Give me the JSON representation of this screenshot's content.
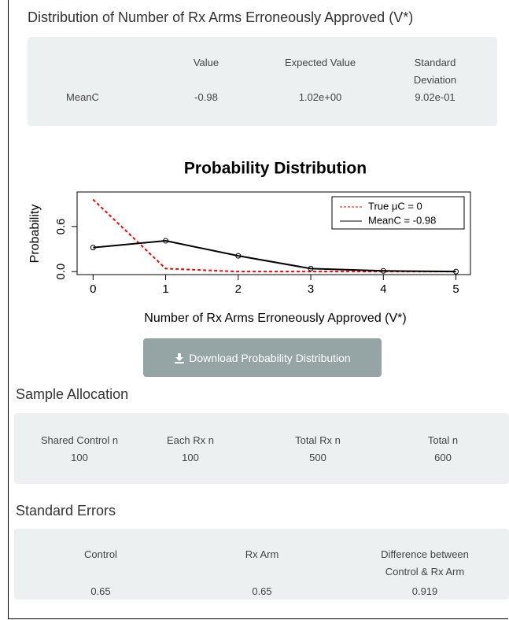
{
  "header": {
    "title": "Distribution of Number of Rx Arms Erroneously Approved (V*)"
  },
  "stats_table": {
    "columns": [
      "Value",
      "Expected Value",
      "Standard Deviation"
    ],
    "rows": [
      [
        "MeanC",
        "-0.98",
        "1.02e+00",
        "9.02e-01"
      ]
    ]
  },
  "chart_data": {
    "type": "line",
    "title": "Probability Distribution",
    "x_label": "Number of Rx Arms Erroneously Approved (V*)",
    "y_label": "Probability",
    "x": [
      0,
      1,
      2,
      3,
      4,
      5
    ],
    "series": [
      {
        "name": "True μC = 0",
        "color": "#ff0000",
        "style": "dashed",
        "markers": false,
        "values": [
          0.96,
          0.04,
          0.0,
          0.0,
          0.0,
          0.0
        ]
      },
      {
        "name": "MeanC = -0.98",
        "color": "#000000",
        "style": "solid",
        "markers": true,
        "values": [
          0.32,
          0.41,
          0.21,
          0.04,
          0.01,
          0.0
        ]
      }
    ],
    "xlim": [
      -0.22,
      5.2
    ],
    "ylim": [
      -0.04,
      1.06
    ],
    "xticks": [
      0,
      1,
      2,
      3,
      4,
      5
    ],
    "yticks": [
      {
        "value": 0,
        "label": "0.0"
      },
      0.6
    ],
    "legend": "top-right"
  },
  "download_button": {
    "label": "Download Probability Distribution"
  },
  "sample_allocation": {
    "title": "Sample Allocation",
    "columns": [
      "Shared Control n",
      "Each Rx n",
      "Total Rx n",
      "Total n"
    ],
    "values": [
      "100",
      "100",
      "500",
      "600"
    ]
  },
  "standard_errors": {
    "title": "Standard Errors",
    "columns": [
      "Control",
      "Rx Arm",
      "Difference between Control & Rx Arm"
    ],
    "values": [
      "0.65",
      "0.65",
      "0.919"
    ]
  }
}
